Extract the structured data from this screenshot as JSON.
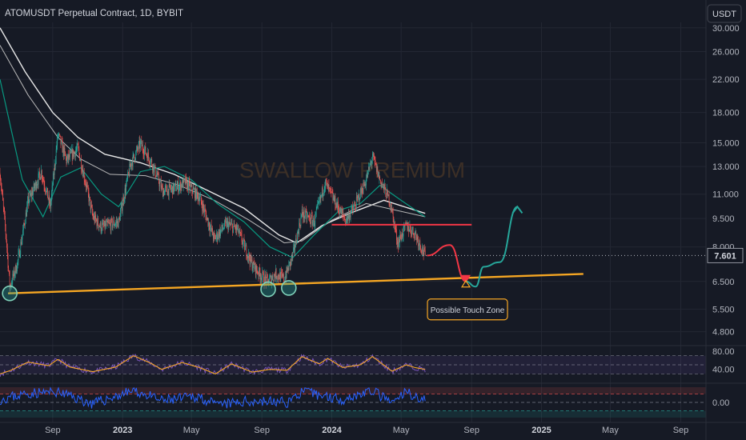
{
  "header": {
    "title": "ATOMUSDT Perpetual Contract, 1D, BYBIT",
    "currency_button": "USDT",
    "watermark": "SWALLOW PREMIUM"
  },
  "chart_data": {
    "type": "candlestick",
    "title": "ATOMUSDT Perpetual Contract, 1D, BYBIT",
    "scale": "log",
    "ylim": [
      4.5,
      31
    ],
    "price_ticks": [
      "30.000",
      "26.000",
      "22.000",
      "18.000",
      "15.000",
      "13.000",
      "11.000",
      "9.500",
      "8.000",
      "6.500",
      "5.500",
      "4.800"
    ],
    "x_ticks": [
      "Sep",
      "2023",
      "May",
      "Sep",
      "2024",
      "May",
      "Sep",
      "2025",
      "May",
      "Sep"
    ],
    "x_tick_dates": [
      "2022-09-01",
      "2023-01-01",
      "2023-05-01",
      "2023-09-01",
      "2024-01-01",
      "2024-05-01",
      "2024-09-01",
      "2025-01-01",
      "2025-05-01",
      "2025-09-01"
    ],
    "x_range": [
      "2022-06-01",
      "2025-10-15"
    ],
    "current_price": "7.601",
    "price_path": [
      {
        "date": "2022-06-01",
        "price": 12.5
      },
      {
        "date": "2022-06-12",
        "price": 8.4
      },
      {
        "date": "2022-06-18",
        "price": 6.3
      },
      {
        "date": "2022-07-01",
        "price": 7.2
      },
      {
        "date": "2022-07-20",
        "price": 10.5
      },
      {
        "date": "2022-08-12",
        "price": 12.6
      },
      {
        "date": "2022-08-28",
        "price": 10.2
      },
      {
        "date": "2022-09-10",
        "price": 15.8
      },
      {
        "date": "2022-09-25",
        "price": 13.5
      },
      {
        "date": "2022-10-15",
        "price": 14.5
      },
      {
        "date": "2022-10-30",
        "price": 11.5
      },
      {
        "date": "2022-11-10",
        "price": 9.6
      },
      {
        "date": "2022-11-25",
        "price": 9.0
      },
      {
        "date": "2022-12-25",
        "price": 9.3
      },
      {
        "date": "2023-01-15",
        "price": 13.2
      },
      {
        "date": "2023-02-01",
        "price": 14.9
      },
      {
        "date": "2023-02-20",
        "price": 13.4
      },
      {
        "date": "2023-03-12",
        "price": 11.2
      },
      {
        "date": "2023-04-01",
        "price": 11.4
      },
      {
        "date": "2023-04-20",
        "price": 11.8
      },
      {
        "date": "2023-05-15",
        "price": 10.8
      },
      {
        "date": "2023-06-10",
        "price": 8.4
      },
      {
        "date": "2023-07-01",
        "price": 9.2
      },
      {
        "date": "2023-07-20",
        "price": 8.9
      },
      {
        "date": "2023-08-15",
        "price": 7.2
      },
      {
        "date": "2023-09-01",
        "price": 6.7
      },
      {
        "date": "2023-09-12",
        "price": 6.5
      },
      {
        "date": "2023-09-25",
        "price": 6.8
      },
      {
        "date": "2023-10-10",
        "price": 6.6
      },
      {
        "date": "2023-10-25",
        "price": 7.6
      },
      {
        "date": "2023-11-10",
        "price": 9.8
      },
      {
        "date": "2023-12-01",
        "price": 9.3
      },
      {
        "date": "2023-12-20",
        "price": 11.8
      },
      {
        "date": "2024-01-05",
        "price": 10.6
      },
      {
        "date": "2024-01-25",
        "price": 9.4
      },
      {
        "date": "2024-02-10",
        "price": 10.2
      },
      {
        "date": "2024-03-01",
        "price": 12.0
      },
      {
        "date": "2024-03-12",
        "price": 13.8
      },
      {
        "date": "2024-03-25",
        "price": 12.0
      },
      {
        "date": "2024-04-12",
        "price": 10.5
      },
      {
        "date": "2024-04-25",
        "price": 8.2
      },
      {
        "date": "2024-05-10",
        "price": 9.1
      },
      {
        "date": "2024-05-25",
        "price": 8.7
      },
      {
        "date": "2024-06-12",
        "price": 7.6
      }
    ],
    "sma_fast": [
      {
        "date": "2022-06-01",
        "price": 22
      },
      {
        "date": "2022-07-10",
        "price": 12
      },
      {
        "date": "2022-08-15",
        "price": 9.6
      },
      {
        "date": "2022-09-15",
        "price": 12.2
      },
      {
        "date": "2022-10-20",
        "price": 12.9
      },
      {
        "date": "2022-11-25",
        "price": 11
      },
      {
        "date": "2022-12-25",
        "price": 10.2
      },
      {
        "date": "2023-02-01",
        "price": 12.6
      },
      {
        "date": "2023-03-15",
        "price": 13
      },
      {
        "date": "2023-05-01",
        "price": 12
      },
      {
        "date": "2023-06-15",
        "price": 10.4
      },
      {
        "date": "2023-08-01",
        "price": 9.3
      },
      {
        "date": "2023-09-15",
        "price": 8
      },
      {
        "date": "2023-10-25",
        "price": 7.5
      },
      {
        "date": "2023-12-01",
        "price": 8.6
      },
      {
        "date": "2024-01-15",
        "price": 10
      },
      {
        "date": "2024-02-20",
        "price": 10.4
      },
      {
        "date": "2024-03-25",
        "price": 11.6
      },
      {
        "date": "2024-05-01",
        "price": 10.6
      },
      {
        "date": "2024-06-12",
        "price": 9.6
      }
    ],
    "sma_slow": [
      {
        "date": "2022-06-01",
        "price": 30
      },
      {
        "date": "2022-07-15",
        "price": 23
      },
      {
        "date": "2022-09-01",
        "price": 18
      },
      {
        "date": "2022-10-15",
        "price": 15.5
      },
      {
        "date": "2022-12-01",
        "price": 14
      },
      {
        "date": "2023-02-01",
        "price": 13.3
      },
      {
        "date": "2023-04-01",
        "price": 12.4
      },
      {
        "date": "2023-06-01",
        "price": 11.2
      },
      {
        "date": "2023-08-01",
        "price": 10.1
      },
      {
        "date": "2023-10-01",
        "price": 8.6
      },
      {
        "date": "2023-11-01",
        "price": 8.2
      },
      {
        "date": "2023-12-15",
        "price": 9.1
      },
      {
        "date": "2024-02-01",
        "price": 9.8
      },
      {
        "date": "2024-04-01",
        "price": 10.6
      },
      {
        "date": "2024-06-12",
        "price": 9.8
      }
    ],
    "sma_mid": [
      {
        "date": "2022-06-01",
        "price": 27
      },
      {
        "date": "2022-07-20",
        "price": 20
      },
      {
        "date": "2022-09-10",
        "price": 15.5
      },
      {
        "date": "2022-10-20",
        "price": 13.6
      },
      {
        "date": "2022-12-10",
        "price": 12.4
      },
      {
        "date": "2023-02-10",
        "price": 12.3
      },
      {
        "date": "2023-04-10",
        "price": 11.6
      },
      {
        "date": "2023-06-10",
        "price": 10.6
      },
      {
        "date": "2023-08-10",
        "price": 9.4
      },
      {
        "date": "2023-10-10",
        "price": 8.2
      },
      {
        "date": "2023-11-10",
        "price": 8.3
      },
      {
        "date": "2024-01-01",
        "price": 9.4
      },
      {
        "date": "2024-03-01",
        "price": 10.4
      },
      {
        "date": "2024-06-12",
        "price": 9.6
      }
    ],
    "support_line": [
      {
        "date": "2022-06-15",
        "price": 6.05
      },
      {
        "date": "2025-03-15",
        "price": 6.8
      }
    ],
    "resistance_line": [
      {
        "date": "2024-01-01",
        "price": 9.15
      },
      {
        "date": "2024-09-01",
        "price": 9.15
      }
    ],
    "touch_circles": [
      {
        "date": "2022-06-18",
        "price": 6.05
      },
      {
        "date": "2023-09-12",
        "price": 6.2
      },
      {
        "date": "2023-10-18",
        "price": 6.25
      }
    ],
    "projection_red": [
      {
        "date": "2024-06-15",
        "price": 7.6
      },
      {
        "date": "2024-07-25",
        "price": 8.1
      },
      {
        "date": "2024-08-22",
        "price": 6.5
      }
    ],
    "projection_green": [
      {
        "date": "2024-08-22",
        "price": 6.5
      },
      {
        "date": "2024-09-08",
        "price": 6.3
      },
      {
        "date": "2024-09-22",
        "price": 7.1
      },
      {
        "date": "2024-10-20",
        "price": 7.3
      },
      {
        "date": "2024-11-20",
        "price": 10.2
      }
    ],
    "annotation": {
      "text": "Possible Touch Zone",
      "date": "2024-08-22",
      "price": 6.5
    },
    "rsi": {
      "ticks": [
        "80.00",
        "40.00"
      ],
      "levels": [
        70,
        50,
        30
      ],
      "ylim": [
        15,
        85
      ],
      "series": [
        {
          "date": "2022-06-01",
          "value": 30
        },
        {
          "date": "2022-06-20",
          "value": 38
        },
        {
          "date": "2022-07-20",
          "value": 56
        },
        {
          "date": "2022-08-25",
          "value": 48
        },
        {
          "date": "2022-09-10",
          "value": 62
        },
        {
          "date": "2022-10-01",
          "value": 45
        },
        {
          "date": "2022-11-10",
          "value": 35
        },
        {
          "date": "2022-12-20",
          "value": 45
        },
        {
          "date": "2023-01-20",
          "value": 70
        },
        {
          "date": "2023-02-20",
          "value": 53
        },
        {
          "date": "2023-03-10",
          "value": 40
        },
        {
          "date": "2023-04-15",
          "value": 55
        },
        {
          "date": "2023-05-15",
          "value": 44
        },
        {
          "date": "2023-06-12",
          "value": 30
        },
        {
          "date": "2023-07-10",
          "value": 52
        },
        {
          "date": "2023-08-15",
          "value": 34
        },
        {
          "date": "2023-09-15",
          "value": 40
        },
        {
          "date": "2023-10-15",
          "value": 38
        },
        {
          "date": "2023-11-10",
          "value": 68
        },
        {
          "date": "2023-12-10",
          "value": 52
        },
        {
          "date": "2023-12-25",
          "value": 64
        },
        {
          "date": "2024-01-20",
          "value": 44
        },
        {
          "date": "2024-02-20",
          "value": 50
        },
        {
          "date": "2024-03-12",
          "value": 68
        },
        {
          "date": "2024-04-15",
          "value": 36
        },
        {
          "date": "2024-05-10",
          "value": 50
        },
        {
          "date": "2024-05-25",
          "value": 44
        },
        {
          "date": "2024-06-12",
          "value": 40
        }
      ]
    },
    "oscillator": {
      "ticks": [
        "0.00"
      ],
      "ylim": [
        -1,
        1
      ],
      "series": [
        {
          "date": "2022-06-01",
          "value": 0.2
        },
        {
          "date": "2022-07-20",
          "value": 0.6
        },
        {
          "date": "2022-09-10",
          "value": 0.7
        },
        {
          "date": "2022-11-10",
          "value": -0.1
        },
        {
          "date": "2023-01-20",
          "value": 0.8
        },
        {
          "date": "2023-03-10",
          "value": 0.1
        },
        {
          "date": "2023-05-15",
          "value": 0.4
        },
        {
          "date": "2023-06-12",
          "value": -0.2
        },
        {
          "date": "2023-08-15",
          "value": 0.1
        },
        {
          "date": "2023-10-15",
          "value": 0.0
        },
        {
          "date": "2023-11-10",
          "value": 0.7
        },
        {
          "date": "2024-01-20",
          "value": 0.2
        },
        {
          "date": "2024-03-12",
          "value": 0.8
        },
        {
          "date": "2024-04-15",
          "value": -0.1
        },
        {
          "date": "2024-05-10",
          "value": 0.7
        },
        {
          "date": "2024-06-12",
          "value": 0.1
        }
      ]
    }
  },
  "colors": {
    "background": "#161a25",
    "up": "#26a69a",
    "down": "#ef5350",
    "support": "#f5a623",
    "resistance": "#f23645",
    "sma_fast": "#089981",
    "sma_slow": "#e8e8e8",
    "sma_mid": "#b8b8b8",
    "rsi_line": "#7e57c2",
    "rsi_ma": "#f5a623",
    "osc_line": "#2962ff",
    "projection_up": "#26a69a",
    "projection_down": "#f23645"
  }
}
